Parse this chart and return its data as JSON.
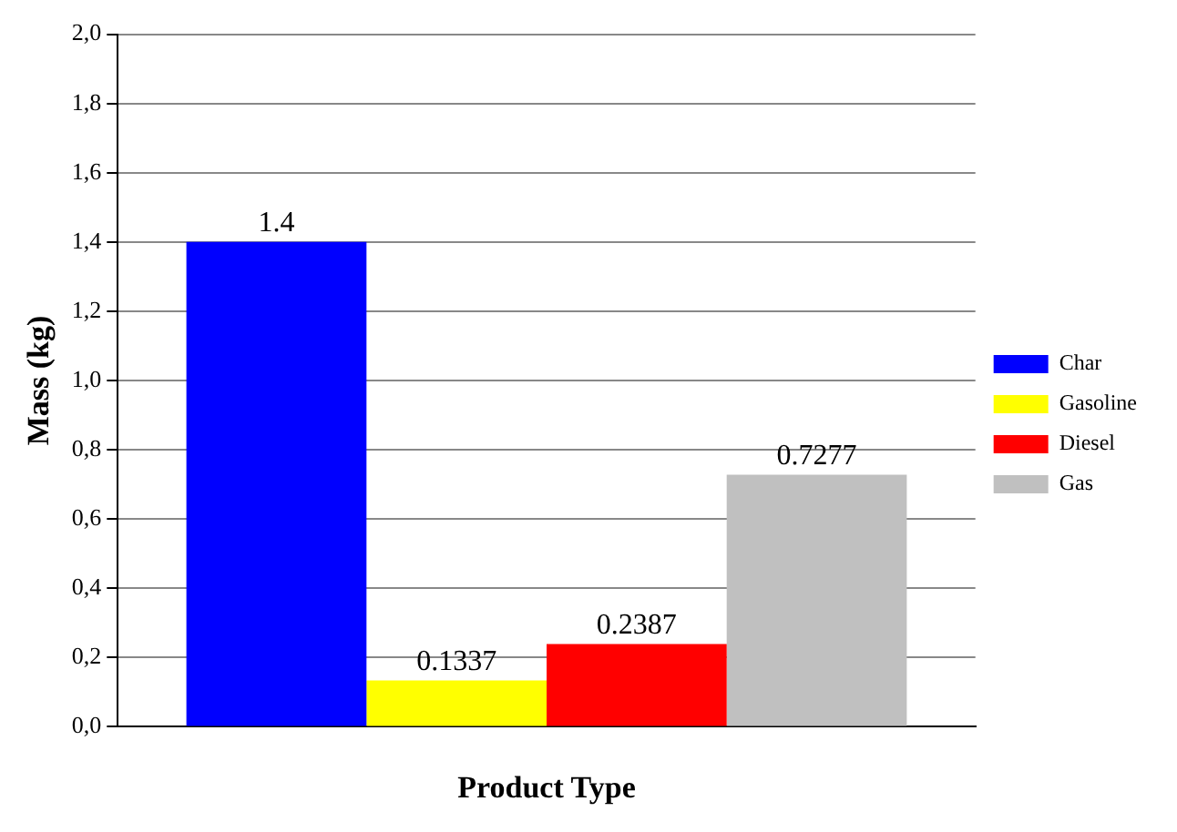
{
  "chart_data": {
    "type": "bar",
    "xlabel": "Product Type",
    "ylabel": "Mass (kg)",
    "categories": [
      null
    ],
    "series": [
      {
        "name": "Char",
        "color": "#0000ff",
        "values": [
          1.4
        ]
      },
      {
        "name": "Gasoline",
        "color": "#ffff00",
        "values": [
          0.1337
        ]
      },
      {
        "name": "Diesel",
        "color": "#ff0000",
        "values": [
          0.2387
        ]
      },
      {
        "name": "Gas",
        "color": "#c0c0c0",
        "values": [
          0.7277
        ]
      }
    ],
    "ylim": [
      0,
      2
    ],
    "yticks": [
      {
        "value": 0,
        "label": "0,0"
      },
      {
        "value": 0.2,
        "label": "0,2"
      },
      {
        "value": 0.4,
        "label": "0,4"
      },
      {
        "value": 0.6,
        "label": "0,6"
      },
      {
        "value": 0.8,
        "label": "0,8"
      },
      {
        "value": 1,
        "label": "1,0"
      },
      {
        "value": 1.2,
        "label": "1,2"
      },
      {
        "value": 1.4,
        "label": "1,4"
      },
      {
        "value": 1.6,
        "label": "1,6"
      },
      {
        "value": 1.8,
        "label": "1,8"
      },
      {
        "value": 2,
        "label": "2,0"
      }
    ],
    "grid": "y",
    "legend": "right",
    "data_labels": true
  }
}
